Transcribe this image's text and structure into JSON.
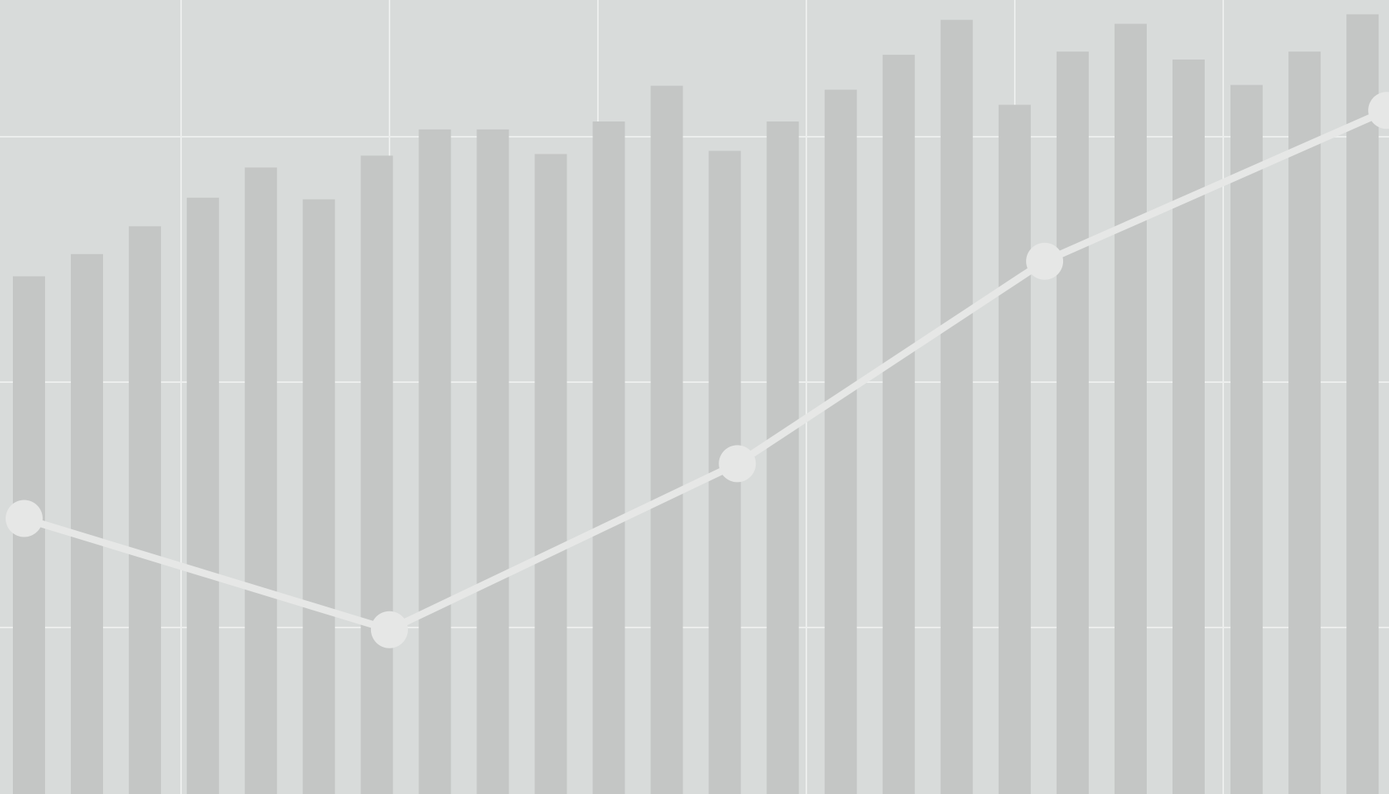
{
  "colors": {
    "background": "#d8dbda",
    "grid": "#eceeed",
    "bar": "#c4c6c5",
    "line": "#e6e7e6",
    "marker": "#e6e7e6"
  },
  "chart_data": {
    "type": "bar",
    "title": "",
    "xlabel": "",
    "ylabel": "",
    "grid": true,
    "legend": "none",
    "ylim": [
      0,
      100
    ],
    "bars": {
      "values": [
        65.2,
        68.0,
        71.5,
        75.1,
        78.9,
        74.9,
        80.4,
        83.7,
        83.7,
        80.6,
        84.7,
        89.2,
        81.0,
        84.7,
        88.7,
        93.1,
        97.5,
        86.8,
        93.5,
        97.0,
        92.5,
        89.3,
        93.5,
        98.2
      ]
    },
    "series": [
      {
        "type": "line",
        "markers": true,
        "x": [
          0,
          6.3,
          12.3,
          17.6,
          23.5
        ],
        "values": [
          34.7,
          20.7,
          41.6,
          67.1,
          86.1
        ]
      }
    ]
  }
}
